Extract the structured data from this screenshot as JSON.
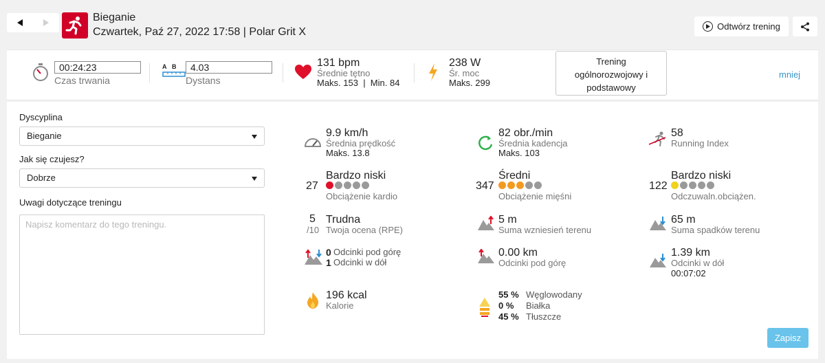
{
  "header": {
    "sport": "Bieganie",
    "subtitle": "Czwartek, Paź 27, 2022 17:58 | Polar Grit X",
    "replay_label": "Odtwórz trening"
  },
  "summary": {
    "duration": {
      "value": "00:24:23",
      "label": "Czas trwania"
    },
    "distance": {
      "value": "4.03",
      "label": "Dystans",
      "ab_a": "A",
      "ab_b": "B"
    },
    "heart_rate": {
      "value": "131 bpm",
      "label": "Średnie tętno",
      "max_min": "Maks. 153  |  Min. 84"
    },
    "power": {
      "value": "238 W",
      "label": "Śr. moc",
      "max": "Maks. 299"
    },
    "training_type": [
      "Trening",
      "ogólnorozwojowy i",
      "podstawowy"
    ],
    "less_link": "mniej"
  },
  "form": {
    "discipline_label": "Dyscyplina",
    "discipline_value": "Bieganie",
    "feeling_label": "Jak się czujesz?",
    "feeling_value": "Dobrze",
    "notes_label": "Uwagi dotyczące treningu",
    "notes_placeholder": "Napisz komentarz do tego treningu."
  },
  "metrics": {
    "speed": {
      "value": "9.9 km/h",
      "label": "Średnia prędkość",
      "max": "Maks. 13.8"
    },
    "cadence": {
      "value": "82 obr./min",
      "label": "Średnia kadencja",
      "max": "Maks. 103"
    },
    "running_index": {
      "value": "58",
      "label": "Running Index"
    },
    "cardio_load": {
      "number": "27",
      "level": "Bardzo niski",
      "label": "Obciążenie kardio",
      "dots_filled": 1,
      "color": "#e0102a"
    },
    "muscle_load": {
      "number": "347",
      "level": "Średni",
      "label": "Obciążenie mięśni",
      "dots_filled": 3,
      "color": "#f39a1f"
    },
    "perceived_load": {
      "number": "122",
      "level": "Bardzo niski",
      "label": "Odczuwaln.obciążen.",
      "dots_filled": 1,
      "color": "#f0d21a"
    },
    "rpe": {
      "number": "5",
      "scale": "/10",
      "level": "Trudna",
      "label": "Twoja ocena (RPE)"
    },
    "ascent": {
      "value": "5 m",
      "label": "Suma wzniesień terenu"
    },
    "descent": {
      "value": "65 m",
      "label": "Suma spadków terenu"
    },
    "segments": {
      "up": "0",
      "up_label": "Odcinki pod górę",
      "down": "1",
      "down_label": "Odcinki w dół"
    },
    "uphill": {
      "value": "0.00 km",
      "label": "Odcinki pod górę"
    },
    "downhill": {
      "value": "1.39 km",
      "label": "Odcinki w dół",
      "time": "00:07:02"
    },
    "calories": {
      "value": "196 kcal",
      "label": "Kalorie"
    },
    "macros": [
      {
        "pct": "55 %",
        "name": "Węglowodany"
      },
      {
        "pct": "0 %",
        "name": "Białka"
      },
      {
        "pct": "45 %",
        "name": "Tłuszcze"
      }
    ]
  },
  "save_label": "Zapisz",
  "colors": {
    "accent": "#d10027",
    "link": "#3a94c8",
    "save": "#69c3ea"
  }
}
